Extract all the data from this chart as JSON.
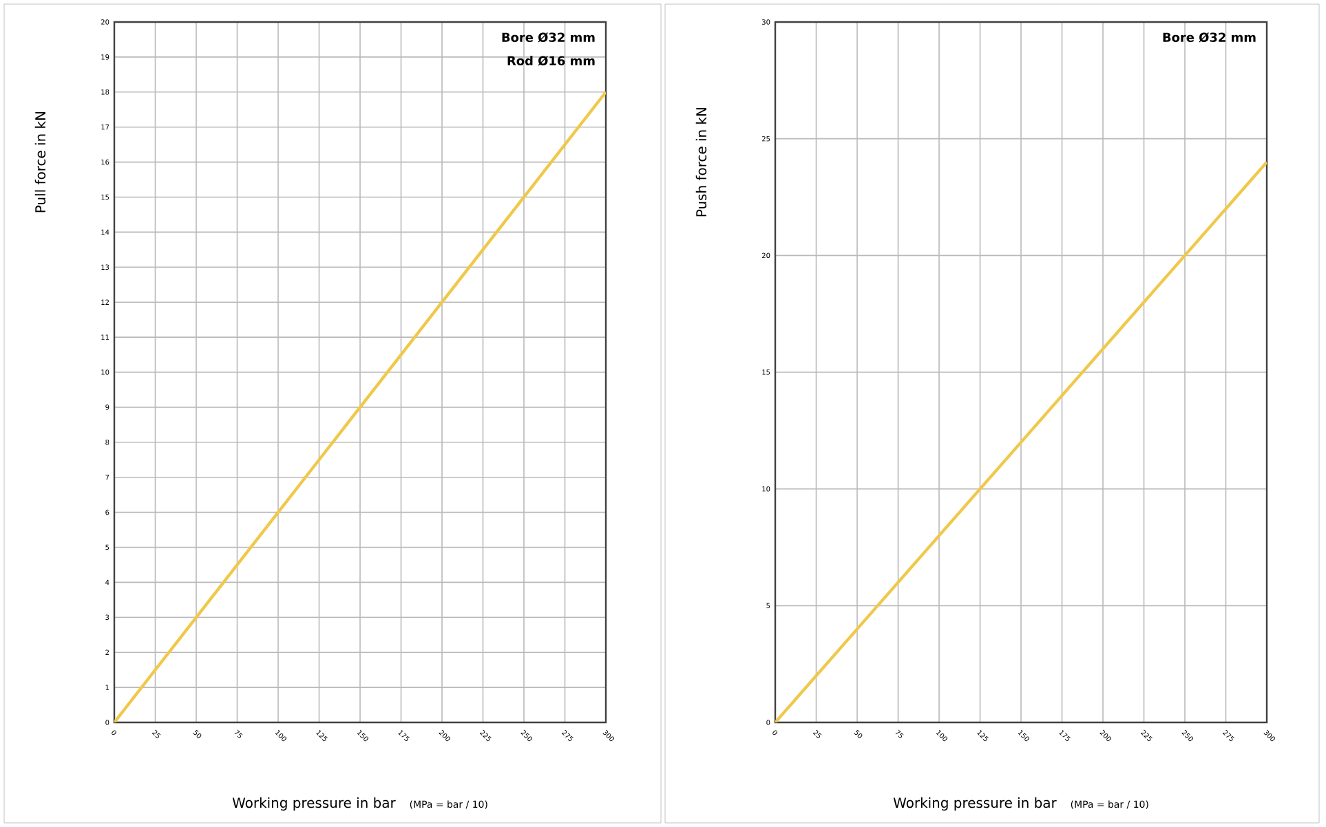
{
  "chart_data": [
    {
      "type": "line",
      "x": [
        0,
        25,
        50,
        75,
        100,
        125,
        150,
        175,
        200,
        225,
        250,
        275,
        300
      ],
      "values": [
        0,
        1.5,
        3,
        4.5,
        6,
        7.5,
        9,
        10.5,
        12,
        13.5,
        15,
        16.5,
        18
      ],
      "color": "#f0c84a",
      "xlabel": "Working pressure in bar",
      "ylabel": "Pull force in kN",
      "xlim": [
        0,
        300
      ],
      "ylim": [
        0,
        20
      ],
      "xticks": [
        0,
        25,
        50,
        75,
        100,
        125,
        150,
        175,
        200,
        225,
        250,
        275,
        300
      ],
      "yticks": [
        0,
        1,
        2,
        3,
        4,
        5,
        6,
        7,
        8,
        9,
        10,
        11,
        12,
        13,
        14,
        15,
        16,
        17,
        18,
        19,
        20
      ],
      "grid": true,
      "annotations": [
        "Bore Ø32 mm",
        "Rod  Ø16 mm",
        "(MPa = bar / 10)"
      ]
    },
    {
      "type": "line",
      "x": [
        0,
        25,
        50,
        75,
        100,
        125,
        150,
        175,
        200,
        225,
        250,
        275,
        300
      ],
      "values": [
        0,
        2,
        4,
        6,
        8,
        10,
        12,
        14,
        16,
        18,
        20,
        22,
        24
      ],
      "color": "#f0c84a",
      "xlabel": "Working pressure in bar",
      "ylabel": "Push force in kN",
      "xlim": [
        0,
        300
      ],
      "ylim": [
        0,
        30
      ],
      "xticks": [
        0,
        25,
        50,
        75,
        100,
        125,
        150,
        175,
        200,
        225,
        250,
        275,
        300
      ],
      "yticks": [
        0,
        5,
        10,
        15,
        20,
        25,
        30
      ],
      "grid": true,
      "annotations": [
        "Bore Ø32 mm",
        "(MPa = bar / 10)"
      ]
    }
  ]
}
